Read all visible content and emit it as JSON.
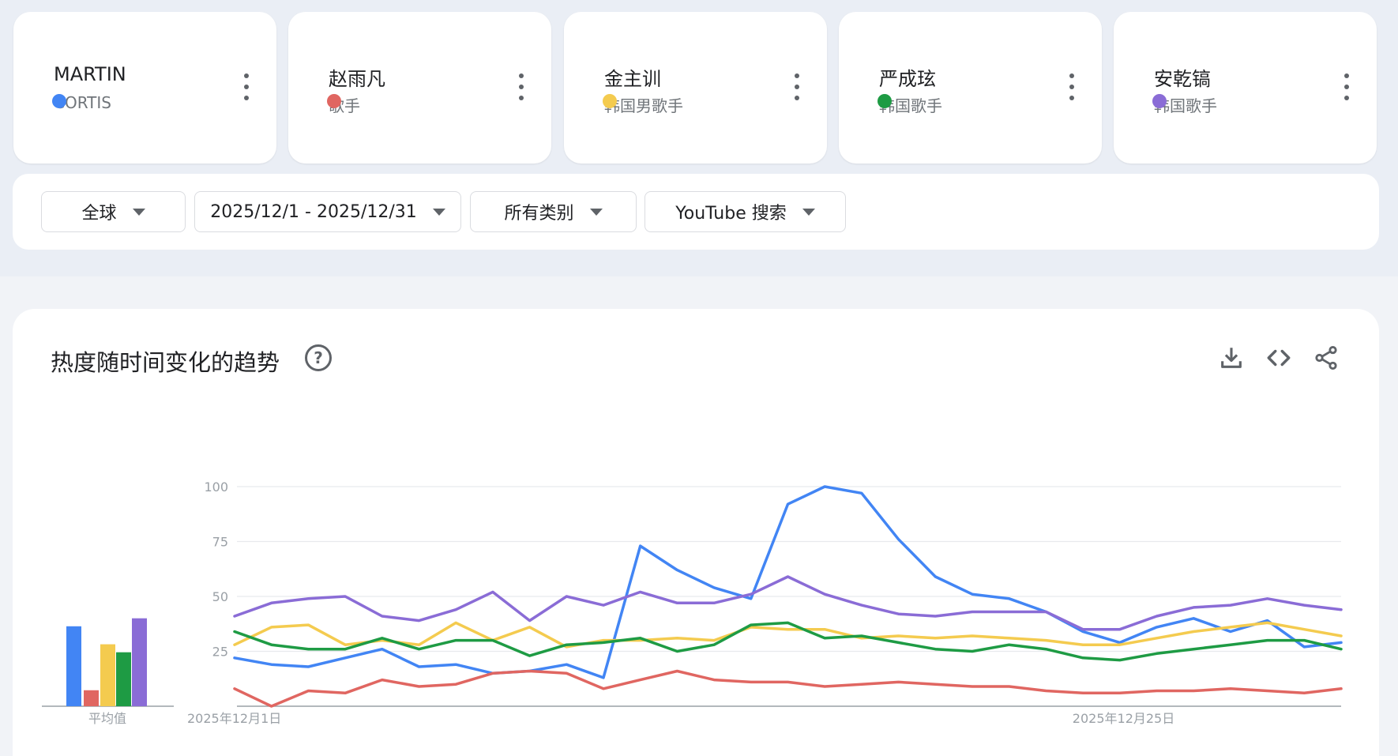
{
  "terms": [
    {
      "name": "MARTIN",
      "subtitle": "CORTIS",
      "color": "#4285f4",
      "dot_icon": "circle-dot",
      "more_icon": "more-vert-icon"
    },
    {
      "name": "赵雨凡",
      "subtitle": "歌手",
      "color": "#e06661",
      "dot_icon": "circle-dot",
      "more_icon": "more-vert-icon"
    },
    {
      "name": "金主训",
      "subtitle": "韩国男歌手",
      "color": "#f4cb4f",
      "dot_icon": "circle-dot",
      "more_icon": "more-vert-icon"
    },
    {
      "name": "严成玹",
      "subtitle": "韩国歌手",
      "color": "#1e9b44",
      "dot_icon": "circle-dot",
      "more_icon": "more-vert-icon"
    },
    {
      "name": "安乾镐",
      "subtitle": "韩国歌手",
      "color": "#8a6cd6",
      "dot_icon": "circle-dot",
      "more_icon": "more-vert-icon"
    }
  ],
  "filters": {
    "region": "全球",
    "date_range": "2025/12/1 - 2025/12/31",
    "category": "所有类别",
    "search_type": "YouTube 搜索"
  },
  "chart": {
    "title": "热度随时间变化的趋势",
    "icons": [
      "help-icon",
      "download-icon",
      "embed-icon",
      "share-icon"
    ]
  },
  "chart_data": [
    {
      "type": "bar",
      "xlabel": "平均值",
      "categories": [
        "MARTIN",
        "赵雨凡",
        "金主训",
        "严成玹",
        "安乾镐"
      ],
      "values": [
        40,
        8,
        31,
        27,
        44
      ],
      "colors": [
        "#4285f4",
        "#e06661",
        "#f4cb4f",
        "#1e9b44",
        "#8a6cd6"
      ],
      "ylim": [
        0,
        100
      ]
    },
    {
      "type": "line",
      "ylim": [
        0,
        100
      ],
      "yticks": [
        25,
        50,
        75,
        100
      ],
      "xtick_labels": [
        {
          "index": 0,
          "label": "2025年12月1日"
        },
        {
          "index": 24,
          "label": "2025年12月25日"
        }
      ],
      "x": [
        "2025-12-01",
        "2025-12-02",
        "2025-12-03",
        "2025-12-04",
        "2025-12-05",
        "2025-12-06",
        "2025-12-07",
        "2025-12-08",
        "2025-12-09",
        "2025-12-10",
        "2025-12-11",
        "2025-12-12",
        "2025-12-13",
        "2025-12-14",
        "2025-12-15",
        "2025-12-16",
        "2025-12-17",
        "2025-12-18",
        "2025-12-19",
        "2025-12-20",
        "2025-12-21",
        "2025-12-22",
        "2025-12-23",
        "2025-12-24",
        "2025-12-25",
        "2025-12-26",
        "2025-12-27",
        "2025-12-28",
        "2025-12-29",
        "2025-12-30",
        "2025-12-31"
      ],
      "grid": true,
      "series": [
        {
          "name": "MARTIN",
          "color": "#4285f4",
          "values": [
            22,
            19,
            18,
            22,
            26,
            18,
            19,
            15,
            16,
            19,
            13,
            73,
            62,
            54,
            49,
            92,
            100,
            97,
            76,
            59,
            51,
            49,
            43,
            34,
            29,
            36,
            40,
            34,
            39,
            27,
            29
          ]
        },
        {
          "name": "赵雨凡",
          "color": "#e06661",
          "values": [
            8,
            0,
            7,
            6,
            12,
            9,
            10,
            15,
            16,
            15,
            8,
            12,
            16,
            12,
            11,
            11,
            9,
            10,
            11,
            10,
            9,
            9,
            7,
            6,
            6,
            7,
            7,
            8,
            7,
            6,
            8
          ]
        },
        {
          "name": "金主训",
          "color": "#f4cb4f",
          "values": [
            28,
            36,
            37,
            28,
            30,
            28,
            38,
            30,
            36,
            27,
            30,
            30,
            31,
            30,
            36,
            35,
            35,
            31,
            32,
            31,
            32,
            31,
            30,
            28,
            28,
            31,
            34,
            36,
            38,
            35,
            32
          ]
        },
        {
          "name": "严成玹",
          "color": "#1e9b44",
          "values": [
            34,
            28,
            26,
            26,
            31,
            26,
            30,
            30,
            23,
            28,
            29,
            31,
            25,
            28,
            37,
            38,
            31,
            32,
            29,
            26,
            25,
            28,
            26,
            22,
            21,
            24,
            26,
            28,
            30,
            30,
            26
          ]
        },
        {
          "name": "安乾镐",
          "color": "#8a6cd6",
          "values": [
            41,
            47,
            49,
            50,
            41,
            39,
            44,
            52,
            39,
            50,
            46,
            52,
            47,
            47,
            51,
            59,
            51,
            46,
            42,
            41,
            43,
            43,
            43,
            35,
            35,
            41,
            45,
            46,
            49,
            46,
            44
          ]
        }
      ]
    }
  ]
}
